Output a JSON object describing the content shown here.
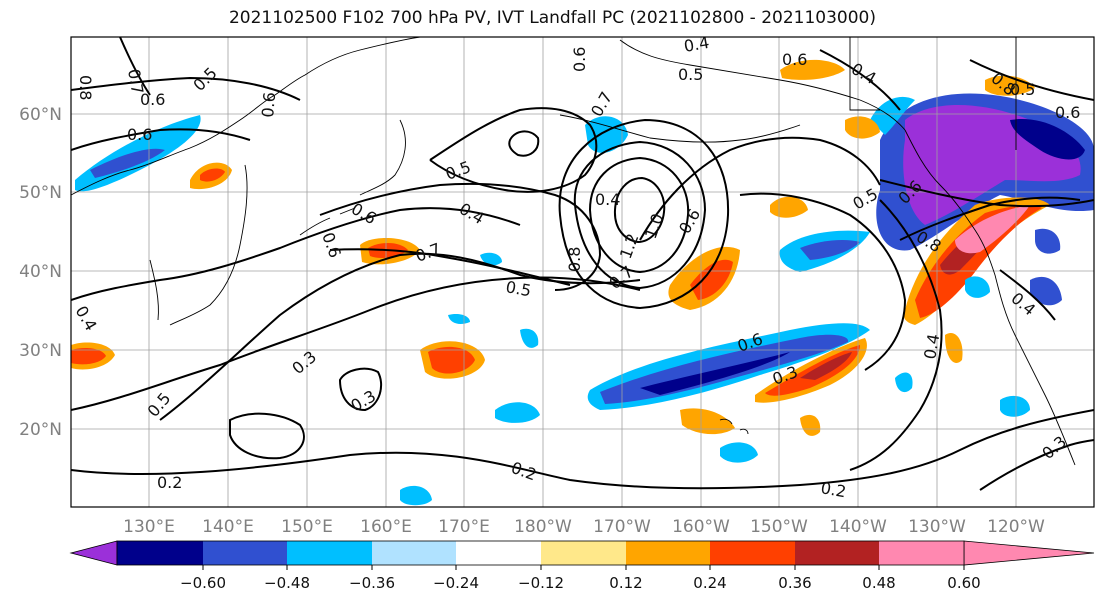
{
  "title": "2021102500 F102 700 hPa PV, IVT Landfall PC (2021102800 - 2021103000)",
  "lat_labels": [
    "60°N",
    "50°N",
    "40°N",
    "30°N",
    "20°N"
  ],
  "lon_labels": [
    "130°E",
    "140°E",
    "150°E",
    "160°E",
    "170°E",
    "180°W",
    "170°W",
    "160°W",
    "150°W",
    "140°W",
    "130°W",
    "120°W"
  ],
  "colorbar": {
    "tick_labels": [
      "−0.60",
      "−0.48",
      "−0.36",
      "−0.24",
      "−0.12",
      "0.12",
      "0.24",
      "0.36",
      "0.48",
      "0.60"
    ],
    "colors": [
      "#9b30d9",
      "#00008b",
      "#3050d0",
      "#00bfff",
      "#b0e2ff",
      "#ffffff",
      "#ffe88a",
      "#ffa500",
      "#ff4000",
      "#b22222",
      "#ff88b0"
    ]
  },
  "contour_labels": [
    "0.8",
    "0.7",
    "0.5",
    "0.6",
    "0.6",
    "0.6",
    "0.6",
    "0.5",
    "0.4",
    "0.6",
    "0.7",
    "0.4",
    "0.5",
    "0.6",
    "0.4",
    "0.6",
    "0.7",
    "0.5",
    "0.4",
    "1.2",
    "1.0",
    "0.8",
    "0.7",
    "0.5",
    "0.6",
    "0.6",
    "0.8",
    "0.5",
    "0.6",
    "0.8",
    "0.4",
    "0.3",
    "0.3",
    "0.5",
    "0.6",
    "0.3",
    "0.4",
    "0.2",
    "0.2",
    "0.2",
    "0.3",
    "0.4"
  ]
}
